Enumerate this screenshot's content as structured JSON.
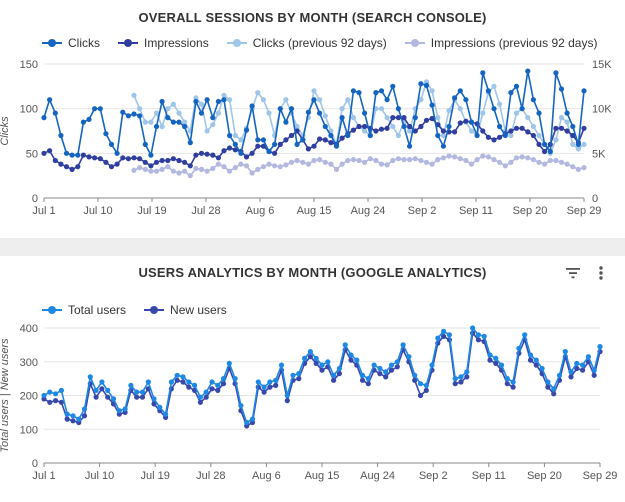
{
  "chart_data": [
    {
      "type": "line",
      "title": "OVERALL SESSIONS BY MONTH (SEARCH CONSOLE)",
      "ylabel": "Clicks",
      "ylim": [
        0,
        150
      ],
      "y2lim": [
        0,
        15000
      ],
      "yticks": [
        "0",
        "50",
        "100",
        "150"
      ],
      "y2ticks": [
        "0",
        "5K",
        "10K",
        "15K"
      ],
      "x_tick_labels": [
        "Jul 1",
        "Jul 10",
        "Jul 19",
        "Jul 28",
        "Aug 6",
        "Aug 15",
        "Aug 24",
        "Sep 2",
        "Sep 11",
        "Sep 20",
        "Sep 29"
      ],
      "grid": true,
      "legend_position": "top-left",
      "series": [
        {
          "name": "Clicks",
          "axis": "left",
          "color": "#1565c0",
          "values": [
            90,
            110,
            95,
            70,
            50,
            48,
            48,
            85,
            88,
            100,
            100,
            72,
            60,
            50,
            96,
            92,
            94,
            92,
            60,
            48,
            80,
            108,
            90,
            85,
            85,
            80,
            62,
            108,
            95,
            110,
            90,
            108,
            110,
            70,
            60,
            50,
            76,
            103,
            65,
            65,
            52,
            60,
            100,
            85,
            100,
            60,
            65,
            96,
            110,
            95,
            80,
            70,
            58,
            90,
            70,
            120,
            118,
            95,
            70,
            118,
            120,
            110,
            125,
            100,
            80,
            58,
            90,
            128,
            126,
            104,
            70,
            58,
            80,
            112,
            120,
            110,
            85,
            70,
            140,
            120,
            100,
            80,
            70,
            118,
            125,
            100,
            142,
            110,
            95,
            60,
            52,
            140,
            122,
            95,
            80,
            60,
            120
          ]
        },
        {
          "name": "Impressions",
          "axis": "right",
          "color": "#303f9f",
          "values": [
            5000,
            5300,
            4200,
            3800,
            3500,
            3200,
            3500,
            4800,
            4600,
            4500,
            4400,
            4000,
            3500,
            3800,
            4500,
            4400,
            4500,
            4400,
            4000,
            3600,
            4000,
            4200,
            4200,
            4400,
            4200,
            4000,
            3600,
            4800,
            5000,
            4900,
            4800,
            4500,
            5300,
            5600,
            5400,
            5200,
            4600,
            5000,
            5800,
            5800,
            5200,
            5000,
            6000,
            6500,
            7000,
            7500,
            6500,
            5500,
            5800,
            6600,
            6500,
            6200,
            6000,
            6700,
            7200,
            7600,
            8000,
            8000,
            7800,
            7500,
            7700,
            7800,
            9000,
            9000,
            9000,
            8000,
            7500,
            8000,
            8700,
            8900,
            8200,
            7500,
            7400,
            7400,
            8400,
            8600,
            8500,
            8300,
            7500,
            6800,
            6500,
            6800,
            7200,
            7500,
            7800,
            7800,
            7400,
            7000,
            6000,
            5200,
            6000,
            7800,
            7800,
            7500,
            7000,
            6200,
            7800
          ]
        },
        {
          "name": "Clicks (previous 92 days)",
          "axis": "left",
          "color": "#9fc5e8",
          "values": [
            null,
            null,
            null,
            null,
            null,
            null,
            null,
            null,
            null,
            null,
            null,
            null,
            null,
            null,
            null,
            null,
            115,
            100,
            85,
            85,
            95,
            80,
            100,
            105,
            95,
            85,
            75,
            112,
            105,
            75,
            82,
            95,
            115,
            110,
            70,
            65,
            78,
            100,
            118,
            110,
            95,
            70,
            100,
            110,
            95,
            80,
            70,
            90,
            120,
            110,
            92,
            75,
            60,
            100,
            110,
            90,
            80,
            75,
            70,
            100,
            100,
            90,
            80,
            70,
            85,
            75,
            100,
            110,
            130,
            120,
            90,
            70,
            98,
            110,
            100,
            85,
            75,
            70,
            95,
            118,
            125,
            105,
            75,
            70,
            95,
            100,
            90,
            80,
            70,
            60,
            50,
            65,
            90,
            85,
            60,
            55,
            60
          ]
        },
        {
          "name": "Impressions (previous 92 days)",
          "axis": "right",
          "color": "#b3b8e0",
          "values": [
            null,
            null,
            null,
            null,
            null,
            null,
            null,
            null,
            null,
            null,
            null,
            null,
            null,
            null,
            null,
            null,
            3100,
            3400,
            3200,
            3000,
            3000,
            3200,
            3500,
            3000,
            2800,
            3000,
            2500,
            3300,
            3200,
            3000,
            3300,
            3800,
            3500,
            3000,
            3400,
            3800,
            3600,
            2800,
            3200,
            3500,
            3800,
            3600,
            3500,
            3700,
            4000,
            4200,
            4000,
            3800,
            4200,
            4300,
            4000,
            3800,
            3200,
            3800,
            4200,
            4300,
            4200,
            4000,
            4400,
            4200,
            3800,
            3700,
            4200,
            4400,
            4300,
            4300,
            4400,
            4200,
            4000,
            3800,
            4300,
            4500,
            4700,
            4600,
            4400,
            4200,
            3800,
            4300,
            4700,
            4600,
            4300,
            4000,
            3600,
            4000,
            4500,
            4600,
            4500,
            4300,
            4000,
            3800,
            4200,
            4200,
            4000,
            3800,
            3500,
            3200,
            3400
          ]
        }
      ]
    },
    {
      "type": "line",
      "title": "USERS ANALYTICS BY MONTH (GOOGLE ANALYTICS)",
      "ylabel": "Total users | New users",
      "ylim": [
        0,
        400
      ],
      "yticks": [
        "0",
        "100",
        "200",
        "300",
        "400"
      ],
      "x_tick_labels": [
        "Jul 1",
        "Jul 10",
        "Jul 19",
        "Jul 28",
        "Aug 6",
        "Aug 15",
        "Aug 24",
        "Sep 2",
        "Sep 11",
        "Sep 20",
        "Sep 29"
      ],
      "grid": true,
      "legend_position": "top-left",
      "series": [
        {
          "name": "Total users",
          "color": "#1e88e5",
          "values": [
            200,
            210,
            205,
            215,
            145,
            140,
            130,
            160,
            255,
            215,
            240,
            215,
            190,
            155,
            160,
            230,
            210,
            210,
            240,
            190,
            165,
            145,
            240,
            260,
            255,
            240,
            230,
            195,
            210,
            240,
            230,
            250,
            295,
            250,
            170,
            120,
            130,
            240,
            225,
            240,
            245,
            290,
            200,
            260,
            265,
            310,
            330,
            310,
            290,
            300,
            260,
            280,
            350,
            320,
            305,
            260,
            250,
            290,
            280,
            270,
            290,
            300,
            350,
            315,
            260,
            235,
            230,
            290,
            370,
            390,
            380,
            250,
            255,
            270,
            400,
            380,
            375,
            320,
            310,
            290,
            250,
            240,
            340,
            380,
            320,
            305,
            280,
            240,
            220,
            260,
            330,
            270,
            295,
            290,
            315,
            275,
            345
          ]
        },
        {
          "name": "New users",
          "color": "#3949ab",
          "values": [
            190,
            180,
            185,
            180,
            130,
            125,
            120,
            140,
            235,
            195,
            220,
            195,
            175,
            145,
            150,
            215,
            195,
            195,
            220,
            175,
            155,
            135,
            220,
            245,
            240,
            225,
            215,
            180,
            195,
            220,
            215,
            235,
            280,
            235,
            155,
            110,
            120,
            225,
            210,
            225,
            230,
            275,
            185,
            245,
            250,
            295,
            315,
            295,
            275,
            285,
            245,
            265,
            335,
            305,
            290,
            245,
            235,
            275,
            265,
            255,
            275,
            285,
            335,
            300,
            245,
            200,
            215,
            275,
            355,
            375,
            365,
            235,
            240,
            255,
            385,
            365,
            360,
            305,
            295,
            275,
            235,
            225,
            325,
            365,
            305,
            290,
            265,
            225,
            205,
            245,
            315,
            255,
            280,
            275,
            300,
            260,
            330
          ]
        }
      ]
    }
  ],
  "ui": {
    "filter_icon": "filter-icon",
    "more_icon": "more-vert-icon"
  }
}
